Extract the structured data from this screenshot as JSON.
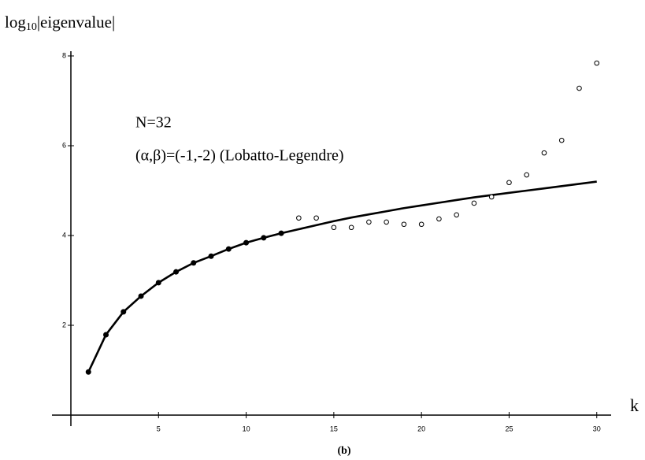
{
  "chart_data": {
    "type": "line",
    "y_label": {
      "base": "log",
      "sub": "10",
      "rest": "|eigenvalue|"
    },
    "x_label": "k",
    "annotations": [
      "N=32",
      "(α,β)=(-1,-2) (Lobatto-Legendre)"
    ],
    "caption": "(b)",
    "x": [
      1,
      2,
      3,
      4,
      5,
      6,
      7,
      8,
      9,
      10,
      11,
      12,
      13,
      14,
      15,
      16,
      17,
      18,
      19,
      20,
      21,
      22,
      23,
      24,
      25,
      26,
      27,
      28,
      29,
      30
    ],
    "series": [
      {
        "style": "line",
        "color": "#000000",
        "values": [
          0.96,
          1.79,
          2.3,
          2.65,
          2.95,
          3.19,
          3.39,
          3.54,
          3.7,
          3.84,
          3.95,
          4.05,
          4.14,
          4.23,
          4.32,
          4.4,
          4.47,
          4.54,
          4.61,
          4.67,
          4.73,
          4.79,
          4.85,
          4.9,
          4.95,
          5.0,
          5.05,
          5.1,
          5.15,
          5.2
        ]
      },
      {
        "style": "filled-circle",
        "color": "#000000",
        "values": [
          0.96,
          1.79,
          2.3,
          2.65,
          2.95,
          3.19,
          3.39,
          3.54,
          3.7,
          3.84,
          3.95,
          4.05,
          null,
          null,
          null,
          null,
          null,
          null,
          null,
          null,
          null,
          null,
          null,
          null,
          null,
          null,
          null,
          null,
          null,
          null
        ]
      },
      {
        "style": "open-circle",
        "color": "#000000",
        "values": [
          null,
          null,
          null,
          null,
          null,
          null,
          null,
          null,
          null,
          null,
          null,
          null,
          4.39,
          4.39,
          4.18,
          4.18,
          4.3,
          4.3,
          4.25,
          4.25,
          4.37,
          4.46,
          4.72,
          4.86,
          5.18,
          5.35,
          5.84,
          6.12,
          7.28,
          7.84
        ]
      }
    ],
    "xlim": [
      0,
      31
    ],
    "ylim": [
      0,
      8
    ],
    "xticks": [
      5,
      10,
      15,
      20,
      25,
      30
    ],
    "yticks": [
      2,
      4,
      6,
      8
    ]
  }
}
